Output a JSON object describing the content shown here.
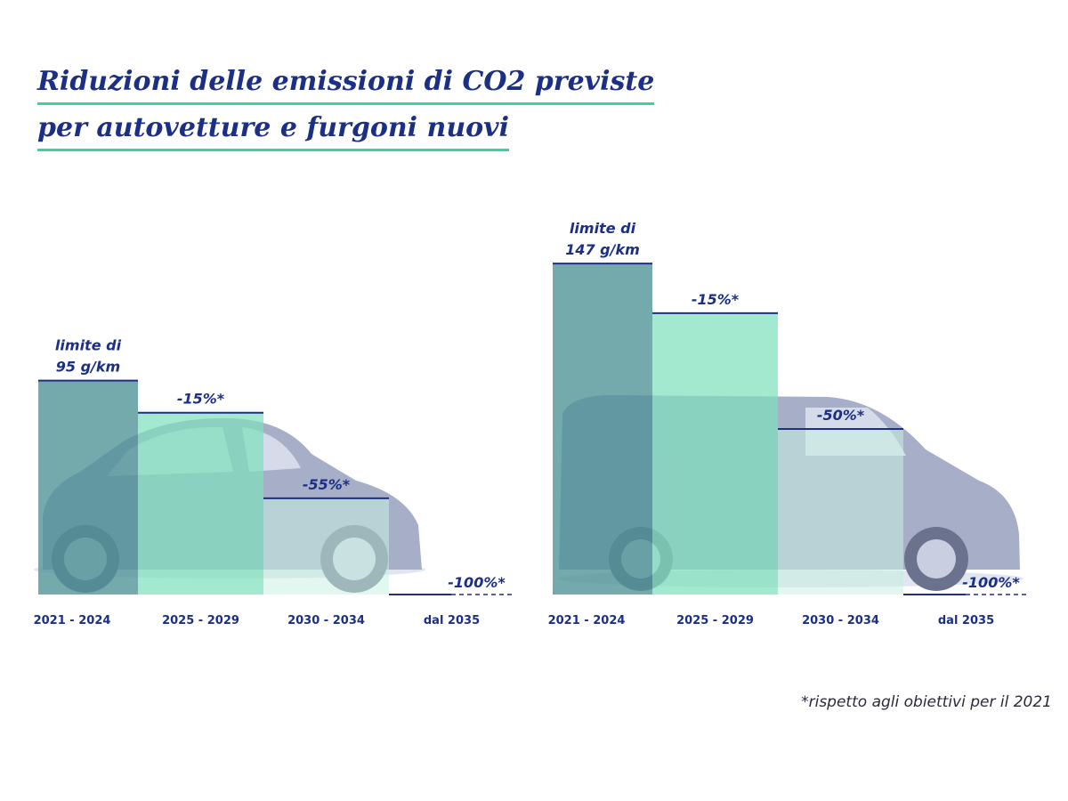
{
  "title": {
    "line1": "Riduzioni delle emissioni di CO2 previste",
    "line2": "per autovetture e furgoni nuovi"
  },
  "footnote": "*rispetto agli obiettivi per il 2021",
  "colors": {
    "navy": "#1b2f85",
    "teal_dark": "#4e9296",
    "mint": "#7fe0bd",
    "mint_light": "#c9f1e2",
    "underline": "#3ad49a"
  },
  "chart_data": [
    {
      "type": "bar",
      "name": "autovetture",
      "categories": [
        "2021 - 2024",
        "2025 - 2029",
        "2030 - 2034",
        "dal 2035"
      ],
      "baseline_g_km": 95,
      "reduction_pct": [
        0,
        15,
        55,
        100
      ],
      "values_g_km": [
        95,
        80.75,
        42.75,
        0
      ],
      "labels": [
        "limite di\n95 g/km",
        "-15%*",
        "-55%*",
        "-100%*"
      ],
      "ylim": [
        0,
        150
      ]
    },
    {
      "type": "bar",
      "name": "furgoni",
      "categories": [
        "2021 - 2024",
        "2025 - 2029",
        "2030 - 2034",
        "dal 2035"
      ],
      "baseline_g_km": 147,
      "reduction_pct": [
        0,
        15,
        50,
        100
      ],
      "values_g_km": [
        147,
        124.95,
        73.5,
        0
      ],
      "labels": [
        "limite di\n147 g/km",
        "-15%*",
        "-50%*",
        "-100%*"
      ],
      "ylim": [
        0,
        150
      ]
    }
  ]
}
